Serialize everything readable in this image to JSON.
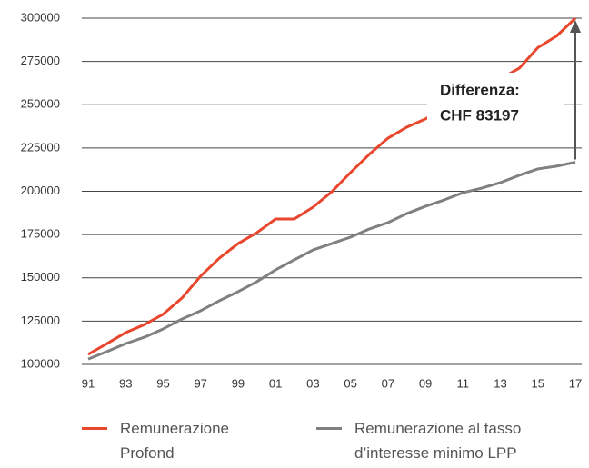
{
  "chart_data": {
    "type": "line",
    "categories": [
      "91",
      null,
      "93",
      null,
      "95",
      null,
      "97",
      null,
      "99",
      null,
      "01",
      null,
      "03",
      null,
      "05",
      null,
      "07",
      null,
      "09",
      null,
      "11",
      null,
      "13",
      null,
      "15",
      null,
      "17"
    ],
    "series": [
      {
        "name": "Remunerazione Profond",
        "color": "#e8472d",
        "values": [
          105800,
          112000,
          118400,
          123000,
          129000,
          138300,
          151000,
          161400,
          169800,
          176100,
          184000,
          184000,
          190800,
          199700,
          210800,
          221300,
          230700,
          237000,
          241800,
          248000,
          255000,
          260000,
          265000,
          271000,
          283000,
          289700,
          300000
        ]
      },
      {
        "name": "Remunerazione al tasso d’interesse minimo LPP",
        "color": "#808080",
        "values": [
          103100,
          107400,
          112000,
          115700,
          120500,
          126200,
          131000,
          136800,
          142000,
          147800,
          154600,
          160400,
          166100,
          169800,
          173500,
          178200,
          181900,
          187100,
          191300,
          195000,
          199200,
          201800,
          205000,
          209200,
          212900,
          214500,
          216803
        ]
      }
    ],
    "ylim": [
      100000,
      300000
    ],
    "yticks": [
      100000,
      125000,
      150000,
      175000,
      200000,
      225000,
      250000,
      275000,
      300000
    ],
    "grid": true,
    "annotation": [
      "Differenza:",
      "CHF 83197"
    ]
  }
}
